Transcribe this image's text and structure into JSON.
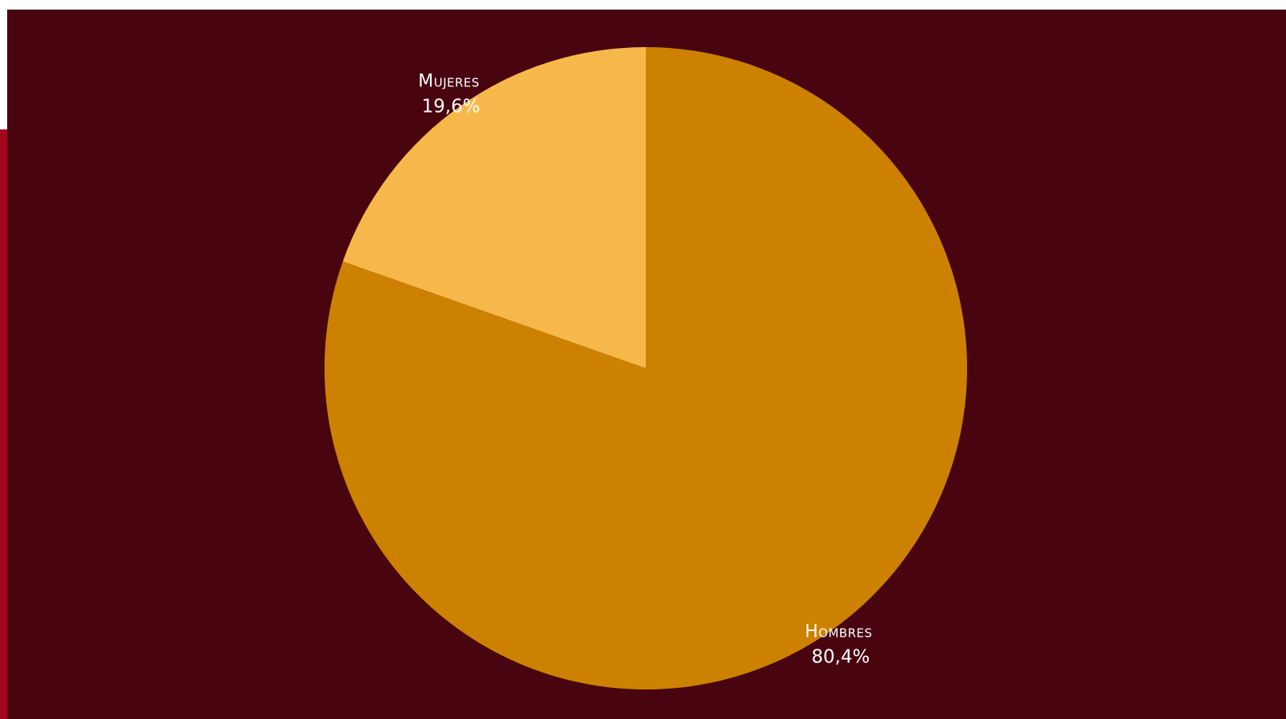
{
  "chart_data": {
    "type": "pie",
    "title": "",
    "slices": [
      {
        "label": "Hombres",
        "value": 80.4,
        "value_label": "80,4%",
        "color": "#cc8100"
      },
      {
        "label": "Mujeres",
        "value": 19.6,
        "value_label": "19,6%",
        "color": "#f7b84b"
      }
    ],
    "start_angle": "top",
    "direction": "clockwise",
    "legend": "none",
    "labels": "outside"
  },
  "colors": {
    "background": "#480510",
    "accent_strip": "#a0061c",
    "text": "#ffffff"
  }
}
